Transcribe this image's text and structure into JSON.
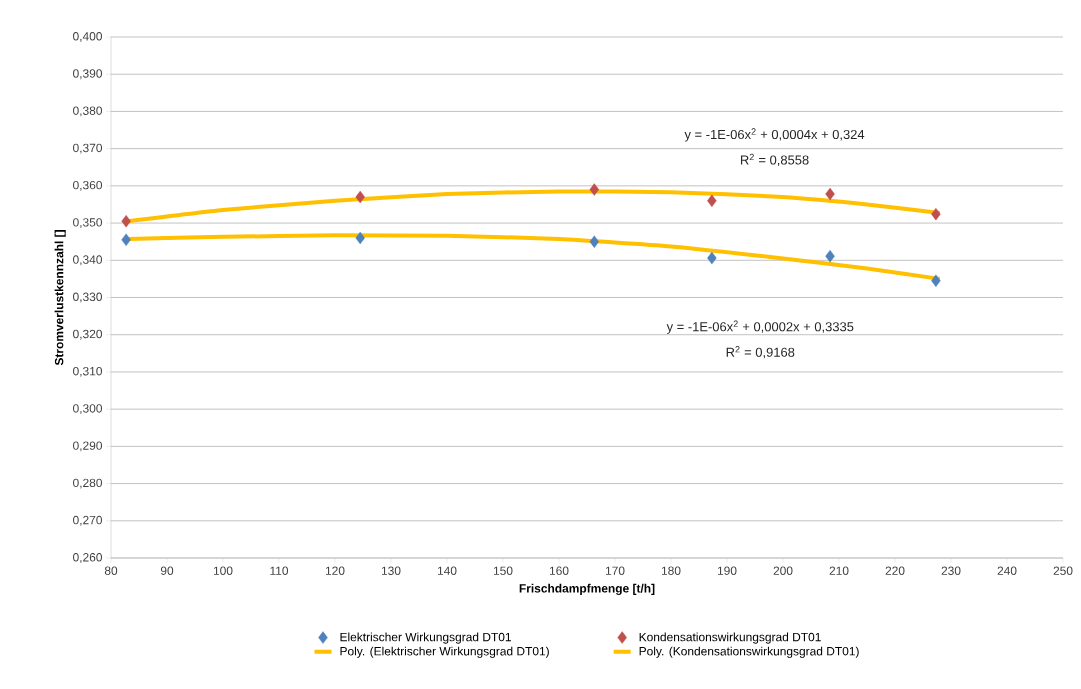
{
  "chart_data": {
    "type": "scatter",
    "xlabel": "Frischdampfmenge [t/h]",
    "ylabel": "Stromverlustkennzahl []",
    "xlim": [
      80,
      250
    ],
    "xticks": [
      80,
      90,
      100,
      110,
      120,
      130,
      140,
      150,
      160,
      170,
      180,
      190,
      200,
      210,
      220,
      230,
      240,
      250
    ],
    "ylim": [
      0.26,
      0.4
    ],
    "yticks": [
      {
        "value": 0.26,
        "label": "0,260"
      },
      {
        "value": 0.27,
        "label": "0,270"
      },
      {
        "value": 0.28,
        "label": "0,280"
      },
      {
        "value": 0.29,
        "label": "0,290"
      },
      {
        "value": 0.3,
        "label": "0,300"
      },
      {
        "value": 0.31,
        "label": "0,310"
      },
      {
        "value": 0.32,
        "label": "0,320"
      },
      {
        "value": 0.33,
        "label": "0,330"
      },
      {
        "value": 0.34,
        "label": "0,340"
      },
      {
        "value": 0.35,
        "label": "0,350"
      },
      {
        "value": 0.36,
        "label": "0,360"
      },
      {
        "value": 0.37,
        "label": "0,370"
      },
      {
        "value": 0.38,
        "label": "0,380"
      },
      {
        "value": 0.39,
        "label": "0,390"
      },
      {
        "value": 0.4,
        "label": "0,400"
      }
    ],
    "grid": "y",
    "legend": "bottom",
    "series": [
      {
        "name": "Elektrischer Wirkungsgrad DT01",
        "marker": "diamond",
        "color": "#4f81bd",
        "x": [
          82.7,
          124.5,
          166.3,
          187.3,
          208.4,
          227.3
        ],
        "values": [
          0.3455,
          0.346,
          0.345,
          0.3406,
          0.3411,
          0.3345
        ]
      },
      {
        "name": "Kondensationswirkungsgrad DT01",
        "marker": "diamond",
        "color": "#c0504d",
        "x": [
          82.7,
          124.5,
          166.3,
          187.3,
          208.4,
          227.3
        ],
        "values": [
          0.3505,
          0.357,
          0.359,
          0.356,
          0.3578,
          0.3524
        ]
      },
      {
        "name": "Poly. (Elektrischer Wirkungsgrad DT01)",
        "type": "line",
        "color": "#ffc000",
        "x": [
          83,
          100,
          120,
          140,
          160,
          180,
          200,
          215,
          228
        ],
        "values": [
          0.3457,
          0.3463,
          0.3467,
          0.3466,
          0.3457,
          0.3437,
          0.3405,
          0.3378,
          0.335
        ]
      },
      {
        "name": "Poly. (Kondensationswirkungsgrad DT01)",
        "type": "line",
        "color": "#ffc000",
        "x": [
          83,
          100,
          120,
          140,
          160,
          180,
          200,
          215,
          228
        ],
        "values": [
          0.3505,
          0.3535,
          0.356,
          0.3578,
          0.3585,
          0.3583,
          0.357,
          0.355,
          0.3527
        ]
      }
    ],
    "annotations": [
      "y = -1E-06x$^{2}$ + 0,0004x + 0,324",
      "R$^{2}$ = 0,8558",
      "y = -1E-06x$^{2}$ + 0,0002x + 0,3335",
      "R$^{2}$ = 0,9168"
    ]
  }
}
